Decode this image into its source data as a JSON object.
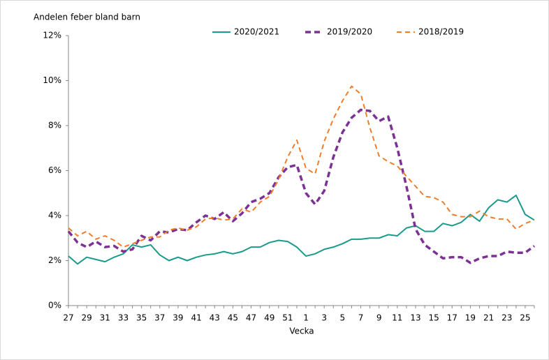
{
  "chart_data": {
    "type": "line",
    "title": "Andelen feber bland barn",
    "x_label": "Vecka",
    "categories": [
      "27",
      null,
      "29",
      null,
      "31",
      null,
      "33",
      null,
      "35",
      null,
      "37",
      null,
      "39",
      null,
      "41",
      null,
      "43",
      null,
      "45",
      null,
      "47",
      null,
      "49",
      null,
      "51",
      null,
      "1",
      null,
      "3",
      null,
      "5",
      null,
      "7",
      null,
      "9",
      null,
      "11",
      null,
      "13",
      null,
      "15",
      null,
      "17",
      null,
      "19",
      null,
      "21",
      null,
      "23",
      null,
      "25",
      null
    ],
    "series": [
      {
        "name": "2020/2021",
        "color": "#1a9a8a",
        "line_style": "solid",
        "values": [
          2.2,
          1.85,
          2.15,
          2.05,
          1.95,
          2.15,
          2.3,
          2.7,
          2.6,
          2.7,
          2.25,
          2.0,
          2.15,
          2.0,
          2.15,
          2.25,
          2.3,
          2.4,
          2.3,
          2.4,
          2.6,
          2.6,
          2.8,
          2.9,
          2.85,
          2.6,
          2.2,
          2.3,
          2.5,
          2.6,
          2.75,
          2.95,
          2.95,
          3.0,
          3.0,
          3.15,
          3.1,
          3.45,
          3.55,
          3.3,
          3.3,
          3.65,
          3.55,
          3.7,
          4.05,
          3.75,
          4.35,
          4.7,
          4.6,
          4.9,
          4.05,
          3.8
        ]
      },
      {
        "name": "2019/2020",
        "color": "#7b3294",
        "line_style": "dashed",
        "values": [
          3.3,
          2.8,
          2.6,
          2.85,
          2.6,
          2.65,
          2.4,
          2.5,
          3.1,
          2.9,
          3.3,
          3.25,
          3.4,
          3.35,
          3.7,
          4.0,
          3.85,
          4.15,
          3.75,
          4.1,
          4.6,
          4.75,
          5.0,
          5.7,
          6.15,
          6.25,
          5.0,
          4.5,
          5.1,
          6.6,
          7.7,
          8.35,
          8.7,
          8.65,
          8.2,
          8.4,
          7.0,
          5.3,
          3.4,
          2.7,
          2.4,
          2.1,
          2.15,
          2.15,
          1.9,
          2.1,
          2.2,
          2.2,
          2.4,
          2.35,
          2.35,
          2.65
        ]
      },
      {
        "name": "2018/2019",
        "color": "#f07d2a",
        "line_style": "dashed",
        "values": [
          3.45,
          3.1,
          3.3,
          2.95,
          3.1,
          2.9,
          2.6,
          2.75,
          2.9,
          3.05,
          3.05,
          3.35,
          3.45,
          3.35,
          3.5,
          3.85,
          3.9,
          3.8,
          3.85,
          4.3,
          4.15,
          4.6,
          4.85,
          5.6,
          6.6,
          7.35,
          6.1,
          5.85,
          7.3,
          8.3,
          9.1,
          9.75,
          9.4,
          7.9,
          6.65,
          6.4,
          6.2,
          5.75,
          5.3,
          4.85,
          4.8,
          4.6,
          4.05,
          3.95,
          3.95,
          4.2,
          3.95,
          3.85,
          3.85,
          3.4,
          3.65,
          3.8
        ]
      }
    ],
    "ylim": [
      0,
      12
    ],
    "yticks": [
      {
        "value": 0,
        "label": "0%"
      },
      {
        "value": 2,
        "label": "2%"
      },
      {
        "value": 4,
        "label": "4%"
      },
      {
        "value": 6,
        "label": "6%"
      },
      {
        "value": 8,
        "label": "8%"
      },
      {
        "value": 10,
        "label": "10%"
      },
      {
        "value": 12,
        "label": "12%"
      }
    ],
    "grid": false,
    "legend": "top"
  }
}
